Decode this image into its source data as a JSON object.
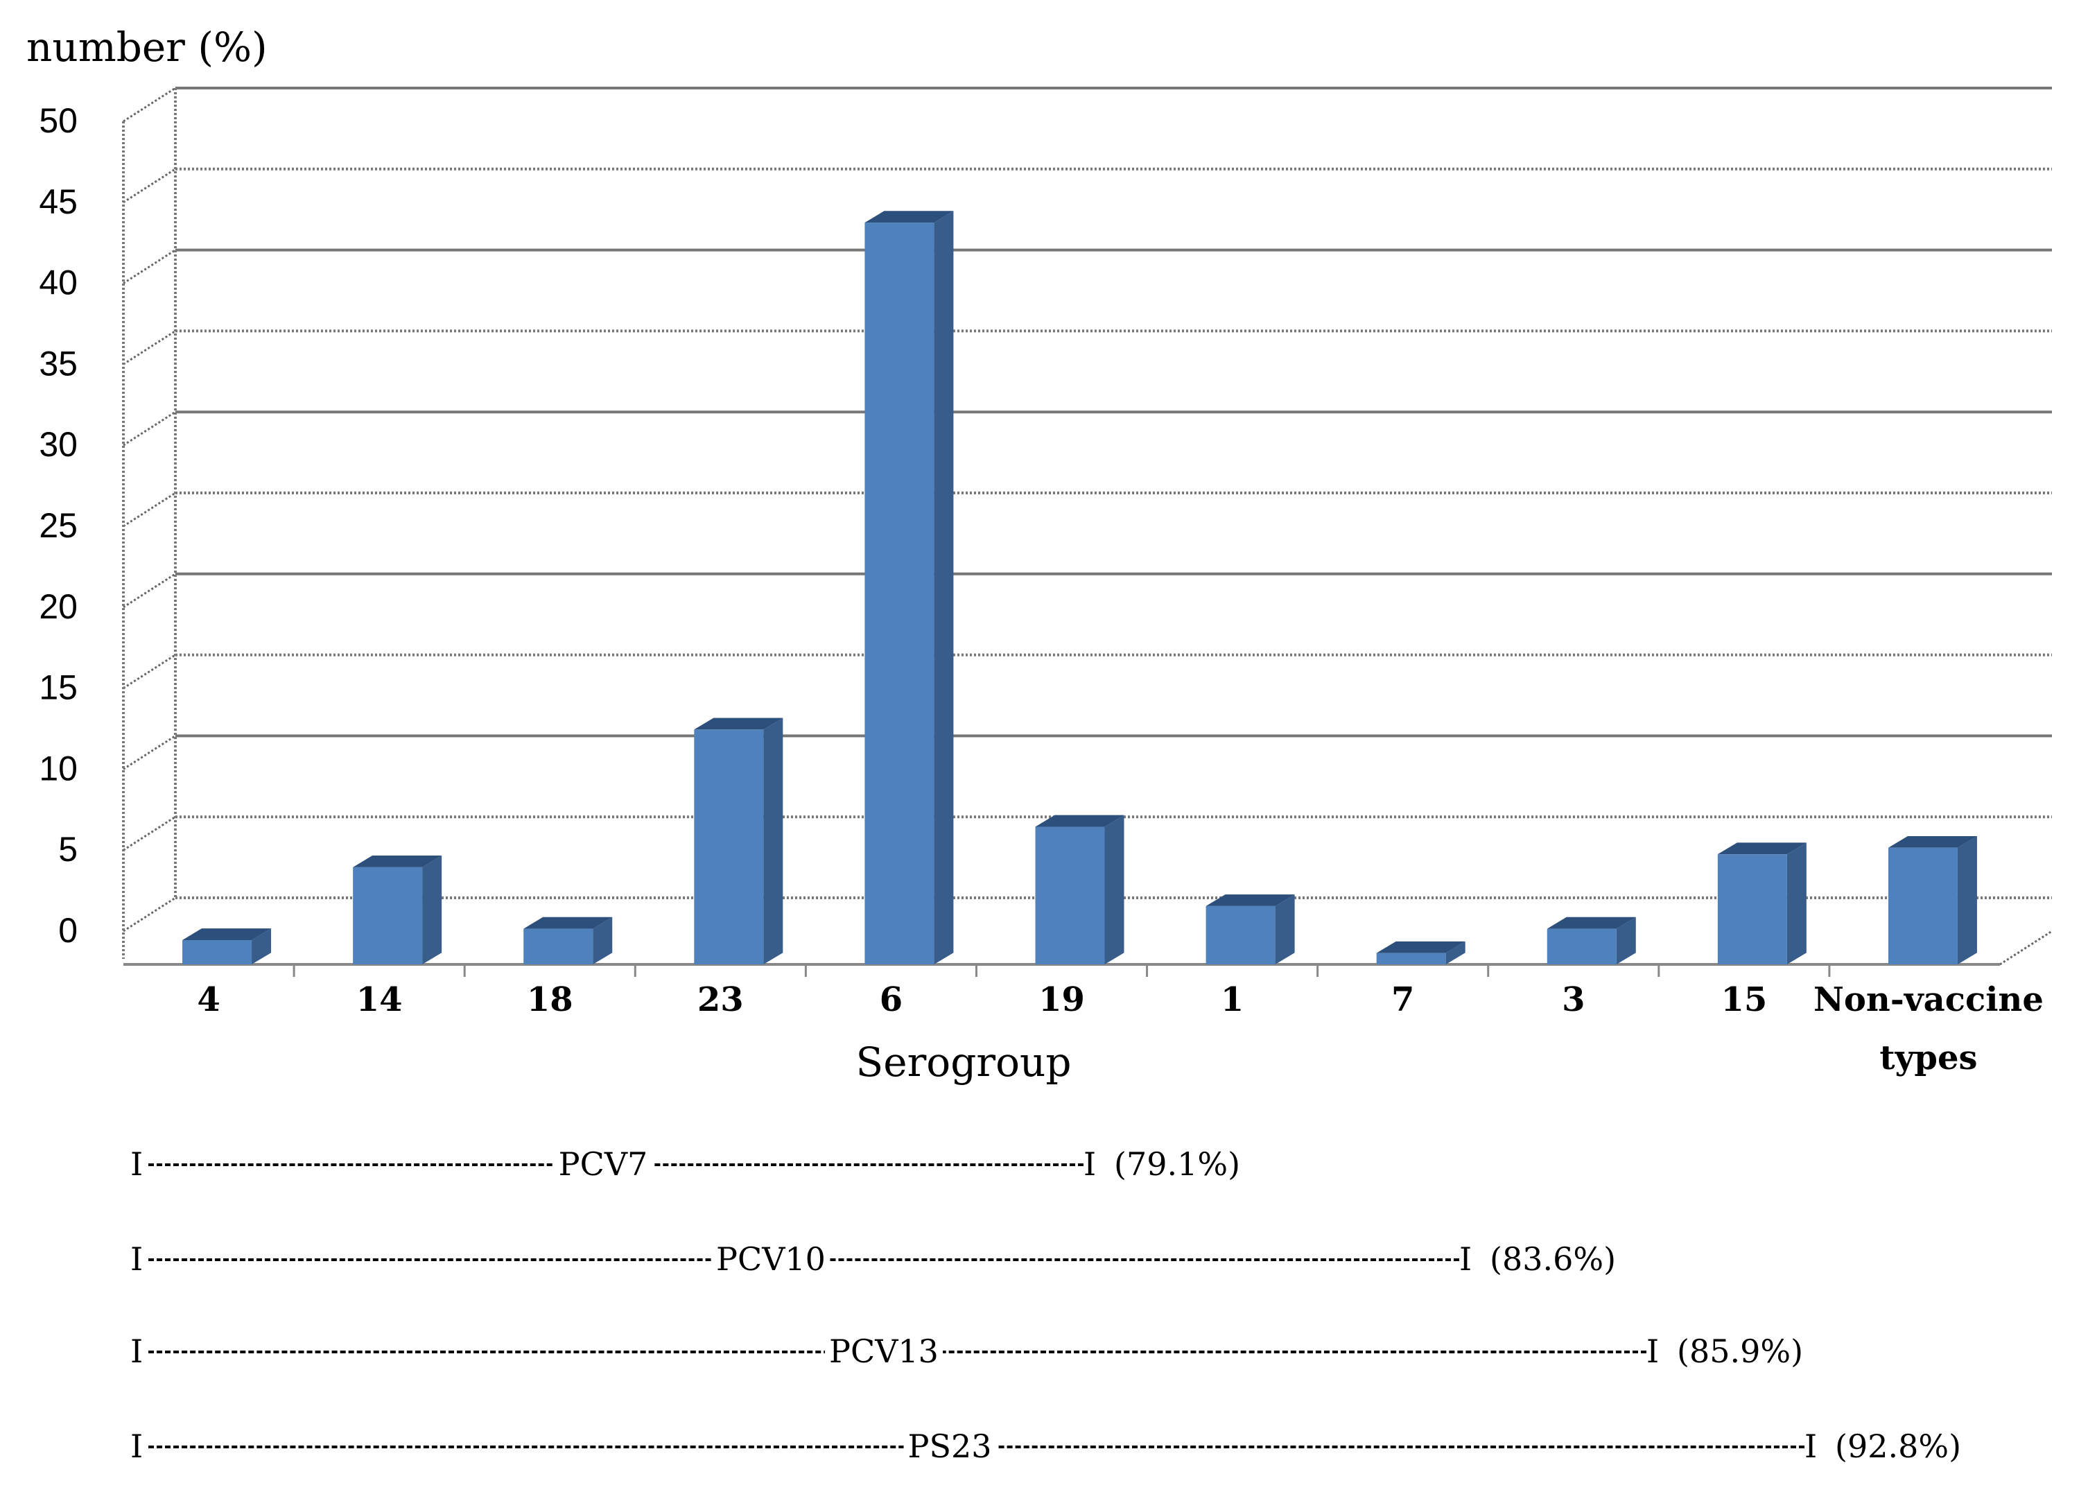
{
  "chart_data": {
    "type": "bar",
    "ylabel": "number (%)",
    "xlabel": "Serogroup",
    "ylim": [
      0,
      50
    ],
    "yticks": [
      0,
      5,
      10,
      15,
      20,
      25,
      30,
      35,
      40,
      45,
      50
    ],
    "grid": true,
    "categories": [
      "4",
      "14",
      "18",
      "23",
      "6",
      "19",
      "1",
      "7",
      "3",
      "15",
      "Non-vaccine types"
    ],
    "values": [
      1.5,
      6.0,
      2.2,
      14.5,
      45.8,
      8.5,
      3.6,
      0.7,
      2.2,
      6.8,
      7.2
    ],
    "bar_color": "#4f81bd",
    "bar_side_color": "#385d8a",
    "bar_top_color": "#2d4f7c"
  },
  "vaccines": [
    {
      "cap_left": "I",
      "name": "PCV7",
      "cap_right": "I",
      "coverage": "(79.1%)"
    },
    {
      "cap_left": "I",
      "name": "PCV10",
      "cap_right": "I",
      "coverage": "(83.6%)"
    },
    {
      "cap_left": "I",
      "name": "PCV13",
      "cap_right": "I",
      "coverage": "(85.9%)"
    },
    {
      "cap_left": "I",
      "name": "PS23",
      "cap_right": "I",
      "coverage": "(92.8%)"
    }
  ]
}
